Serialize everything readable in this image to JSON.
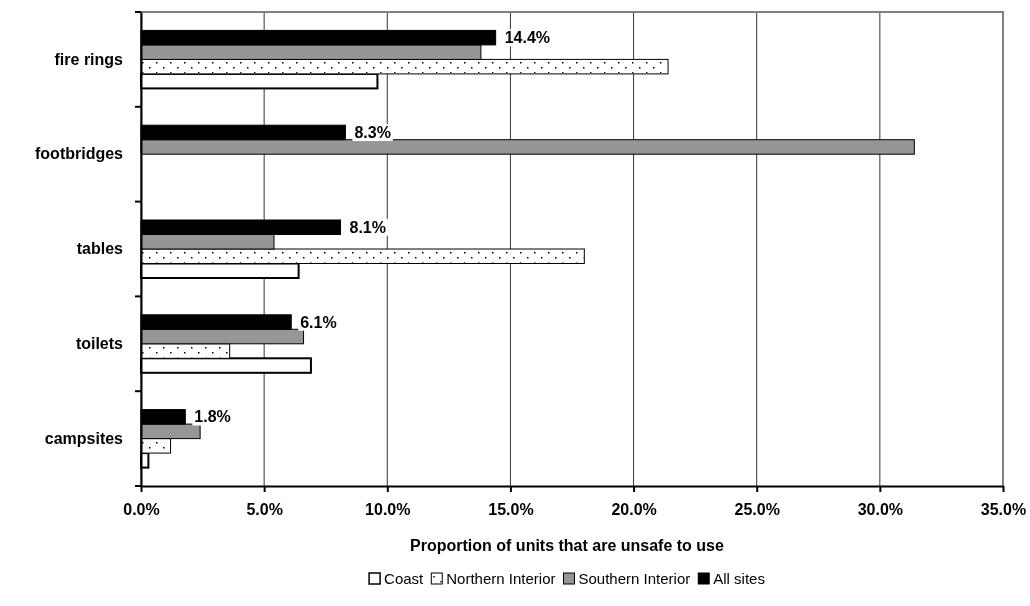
{
  "chart_data": {
    "type": "bar",
    "orientation": "horizontal",
    "xlabel": "Proportion of units that are unsafe to use",
    "categories": [
      "fire rings",
      "footbridges",
      "tables",
      "toilets",
      "campsites"
    ],
    "series": [
      {
        "name": "Coast",
        "color": "#ffffff",
        "values": [
          9.6,
          null,
          6.4,
          6.9,
          0.3
        ]
      },
      {
        "name": "Northern Interior",
        "color": "#ffffff",
        "values": [
          21.4,
          null,
          18.0,
          3.6,
          1.2
        ]
      },
      {
        "name": "Southern Interior",
        "color": "#969696",
        "values": [
          13.8,
          31.4,
          5.4,
          6.6,
          2.4
        ]
      },
      {
        "name": "All sites",
        "color": "#000000",
        "values": [
          14.4,
          8.3,
          8.1,
          6.1,
          1.8
        ],
        "value_labels": [
          "14.4%",
          "8.3%",
          "8.1%",
          "6.1%",
          "1.8%"
        ]
      }
    ],
    "xlim": [
      0,
      35
    ],
    "xticks": [
      {
        "value": 0,
        "label": "0.0%"
      },
      {
        "value": 5,
        "label": "5.0%"
      },
      {
        "value": 10,
        "label": "10.0%"
      },
      {
        "value": 15,
        "label": "15.0%"
      },
      {
        "value": 20,
        "label": "20.0%"
      },
      {
        "value": 25,
        "label": "25.0%"
      },
      {
        "value": 30,
        "label": "30.0%"
      },
      {
        "value": 35,
        "label": "35.0%"
      }
    ],
    "grid": "x",
    "legend": "bottom"
  }
}
